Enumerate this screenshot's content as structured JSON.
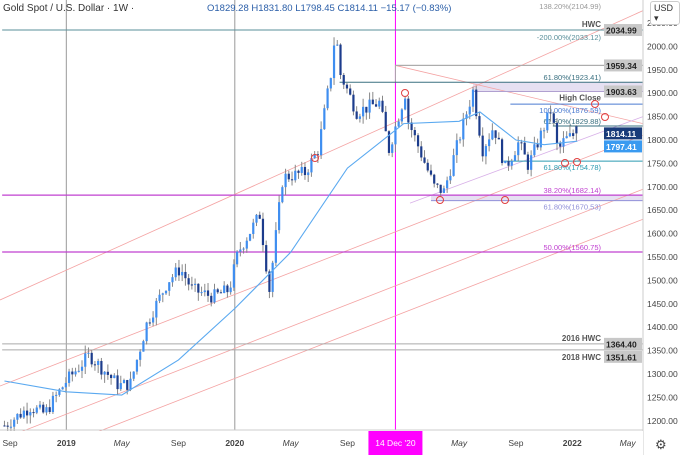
{
  "header": {
    "symbol": "Gold Spot / U.S. Dollar · 1W ·",
    "ohlc": "O1829.28 H1831.80 L1798.45 C1814.11 −15.17 (−0.83%)",
    "currency": "USD",
    "settings_icon": "gear-icon"
  },
  "colors": {
    "up_candle": "#3f8ef0",
    "down_candle": "#1c3c8c",
    "wick": "#888888",
    "moving_average": "#5aa9f0",
    "channel": "#f4a3a3",
    "fib_purple": "#c040d0",
    "vertical_marker": "#ff00ff",
    "last_price": "#1a3c7a"
  },
  "chart_data": {
    "type": "candlestick",
    "title": "Gold Spot / U.S. Dollar · 1W",
    "ylim": [
      1175,
      2110
    ],
    "xlim": [
      "2018-08-15",
      "2022-06-15"
    ],
    "y_ticks": [
      2050,
      2000,
      1950,
      1900,
      1850,
      1800,
      1750,
      1700,
      1650,
      1600,
      1550,
      1500,
      1450,
      1400,
      1350,
      1300,
      1250,
      1200
    ],
    "x_ticks": [
      {
        "date": "2018-09-01",
        "label": "Sep",
        "bold": false
      },
      {
        "date": "2019-01-01",
        "label": "2019",
        "bold": true
      },
      {
        "date": "2019-05-01",
        "label": "May",
        "bold": false
      },
      {
        "date": "2019-09-01",
        "label": "Sep",
        "bold": false
      },
      {
        "date": "2020-01-01",
        "label": "2020",
        "bold": true
      },
      {
        "date": "2020-05-01",
        "label": "May",
        "bold": false
      },
      {
        "date": "2020-09-01",
        "label": "Sep",
        "bold": false
      },
      {
        "date": "2020-12-14",
        "label": "14 Dec '20",
        "highlight": true
      },
      {
        "date": "2021-05-01",
        "label": "May",
        "bold": false
      },
      {
        "date": "2021-09-01",
        "label": "Sep",
        "bold": false
      },
      {
        "date": "2022-01-01",
        "label": "2022",
        "bold": true
      },
      {
        "date": "2022-05-01",
        "label": "May",
        "bold": false
      }
    ],
    "approx_weekly_close_path": [
      [
        "2018-08-20",
        1190
      ],
      [
        "2018-10-15",
        1230
      ],
      [
        "2018-11-15",
        1215
      ],
      [
        "2019-01-01",
        1285
      ],
      [
        "2019-02-20",
        1340
      ],
      [
        "2019-04-25",
        1275
      ],
      [
        "2019-05-20",
        1280
      ],
      [
        "2019-06-25",
        1410
      ],
      [
        "2019-08-10",
        1500
      ],
      [
        "2019-09-05",
        1525
      ],
      [
        "2019-10-01",
        1480
      ],
      [
        "2019-11-15",
        1465
      ],
      [
        "2019-12-20",
        1480
      ],
      [
        "2020-01-08",
        1560
      ],
      [
        "2020-02-24",
        1640
      ],
      [
        "2020-03-16",
        1480
      ],
      [
        "2020-04-14",
        1720
      ],
      [
        "2020-06-01",
        1730
      ],
      [
        "2020-06-30",
        1780
      ],
      [
        "2020-07-27",
        1940
      ],
      [
        "2020-08-06",
        2035
      ],
      [
        "2020-08-17",
        1940
      ],
      [
        "2020-09-21",
        1860
      ],
      [
        "2020-11-09",
        1880
      ],
      [
        "2020-11-30",
        1780
      ],
      [
        "2021-01-04",
        1900
      ],
      [
        "2021-01-11",
        1840
      ],
      [
        "2021-03-08",
        1700
      ],
      [
        "2021-03-29",
        1690
      ],
      [
        "2021-05-31",
        1905
      ],
      [
        "2021-06-21",
        1780
      ],
      [
        "2021-07-15",
        1830
      ],
      [
        "2021-08-09",
        1740
      ],
      [
        "2021-09-07",
        1795
      ],
      [
        "2021-09-28",
        1745
      ],
      [
        "2021-11-16",
        1865
      ],
      [
        "2021-12-01",
        1775
      ],
      [
        "2021-12-15",
        1800
      ],
      [
        "2022-01-12",
        1814
      ]
    ],
    "moving_average_path": [
      [
        "2018-08-20",
        1285
      ],
      [
        "2019-01-01",
        1262
      ],
      [
        "2019-05-01",
        1255
      ],
      [
        "2019-09-01",
        1330
      ],
      [
        "2020-01-01",
        1440
      ],
      [
        "2020-05-01",
        1560
      ],
      [
        "2020-09-01",
        1740
      ],
      [
        "2021-01-01",
        1835
      ],
      [
        "2021-05-01",
        1840
      ],
      [
        "2021-06-15",
        1860
      ],
      [
        "2021-09-01",
        1800
      ],
      [
        "2021-11-01",
        1790
      ],
      [
        "2022-01-12",
        1797.41
      ]
    ],
    "horizontal_levels": [
      {
        "price": 2034.99,
        "label": "HWC",
        "axis_label": "2034.99",
        "color": "#5a8f9a",
        "from": "2018-08-15"
      },
      {
        "price": 2033.12,
        "label": "-200.00%(2033.12)",
        "color": "#5a8f9a",
        "from": "2018-08-15",
        "text_only": true
      },
      {
        "price": 2104.99,
        "label": "138.20%(2104.99)",
        "color": "#999999",
        "from": "2022-06-15",
        "text_only": true
      },
      {
        "price": 1959.34,
        "axis_label": "1959.34",
        "color": "#aaaaaa",
        "from": "2020-12-14"
      },
      {
        "price": 1923.41,
        "label": "61.80%(1923.41)",
        "color": "#3a7080",
        "from": "2020-08-15"
      },
      {
        "price": 1903.63,
        "label": "High Close",
        "axis_label": "1903.63",
        "color": "#b0a0d0",
        "from": "2021-05-31"
      },
      {
        "price": 1876.59,
        "label": "100.00%(1876.59)",
        "color": "#4a7ad0",
        "from": "2021-08-20"
      },
      {
        "price": 1829.88,
        "label": "61.80%(1829.88)",
        "color": "#3a7080",
        "from": "2021-11-20"
      },
      {
        "price": 1754.78,
        "label": "61.80%(1754.78)",
        "color": "#2a9ab0",
        "from": "2021-08-05"
      },
      {
        "price": 1682.14,
        "label": "38.20%(1682.14)",
        "color": "#c040d0",
        "from": "2018-08-15"
      },
      {
        "price": 1670.53,
        "label": "61.80%(1670.53)",
        "color": "#9090d8",
        "from": "2021-03-01"
      },
      {
        "price": 1560.75,
        "label": "50.00%(1560.75)",
        "color": "#c040d0",
        "from": "2018-08-15"
      },
      {
        "price": 1364.4,
        "label": "2016 HWC",
        "axis_label": "1364.40",
        "color": "#aaaaaa",
        "from": "2018-08-15"
      },
      {
        "price": 1351.61,
        "label": "2018 HWC",
        "axis_label": "1351.61",
        "color": "#aaaaaa",
        "from": "2018-08-15"
      }
    ],
    "last_price": {
      "value": 1814.11,
      "label": "1814.11"
    },
    "ma_price": {
      "value": 1797.41,
      "label": "1797.41"
    }
  }
}
